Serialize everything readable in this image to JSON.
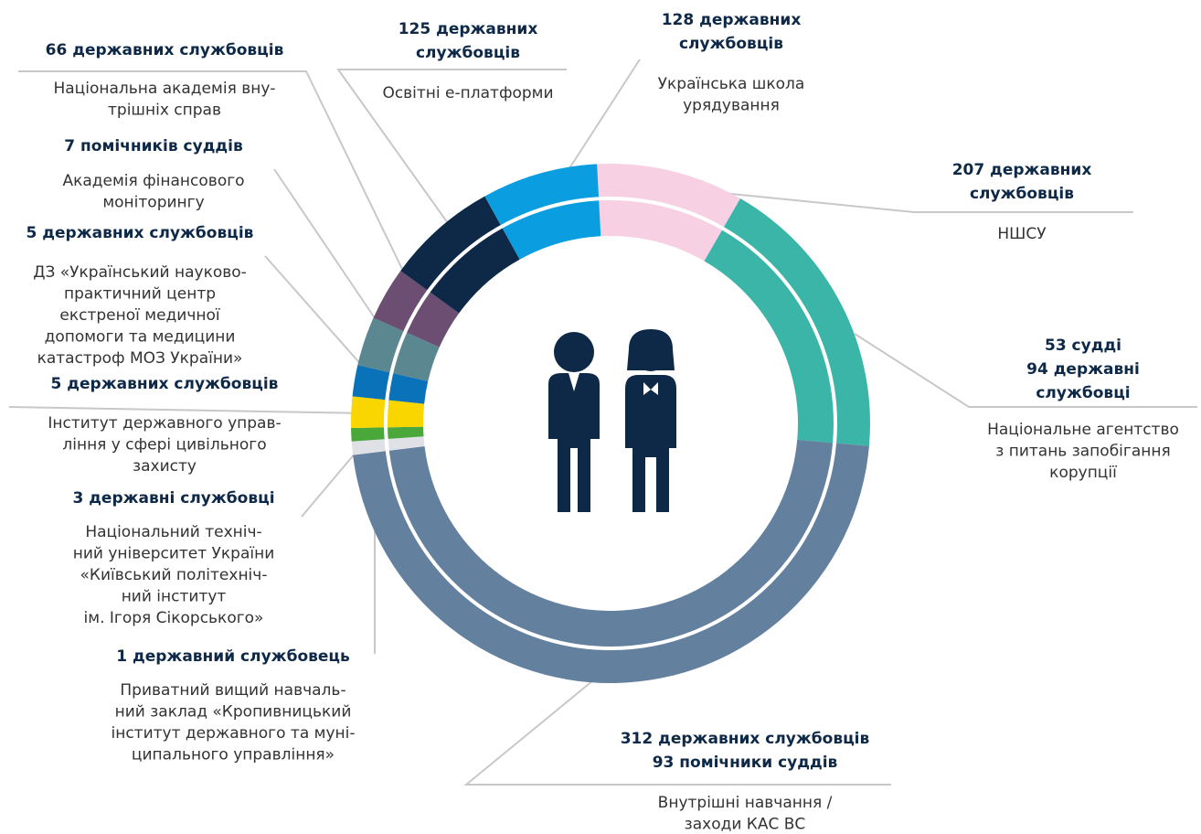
{
  "chart_data": {
    "type": "donut",
    "segments": [
      {
        "count": [
          "207 державних",
          "службовців"
        ],
        "name": [
          "НШСУ"
        ],
        "color": "#f7d0e3"
      },
      {
        "count": [
          "53 судді",
          "94 державні",
          "службовці"
        ],
        "name": [
          "Національне агентство",
          "з питань запобігання",
          "корупції"
        ],
        "color": "#3bb5a8"
      },
      {
        "count": [
          "312 державних службовців",
          "93 помічники суддів"
        ],
        "name": [
          "Внутрішні навчання /",
          "заходи КАС ВС"
        ],
        "color": "#64809f"
      },
      {
        "count": [
          "1 державний службовець"
        ],
        "name": [
          "Приватний вищий навчаль-",
          "ний заклад «Кропивницький",
          "інститут державного та муні-",
          "ципального управління»"
        ],
        "color": "#e0e1e6"
      },
      {
        "count": [
          "3 державні службовці"
        ],
        "name": [
          "Національний техніч-",
          "ний університет України",
          "«Київський політехніч-",
          "ний інститут",
          "ім. Ігоря Сікорського»"
        ],
        "color": "#4aa83a"
      },
      {
        "count": [
          "5 державних службовців"
        ],
        "name": [
          "Інститут державного управ-",
          "ління у сфері цивільного",
          "захисту"
        ],
        "color": "#fad600"
      },
      {
        "count": [
          "5 державних службовців"
        ],
        "name": [
          "ДЗ «Український науково-",
          "практичний центр",
          "екстреної медичної",
          "допомоги та медицини",
          "катастроф МОЗ України»"
        ],
        "color": "#0a72b8"
      },
      {
        "count": [
          "7 помічників суддів"
        ],
        "name": [
          "Академія фінансового",
          "моніторингу"
        ],
        "color": "#5b8791"
      },
      {
        "count": [
          "66 державних службовців"
        ],
        "name": [
          "Національна академія вну-",
          "трішніх справ"
        ],
        "color": "#6b4e72"
      },
      {
        "count": [
          "125 державних",
          "службовців"
        ],
        "name": [
          "Освітні е-платформи"
        ],
        "color": "#0d2947"
      },
      {
        "count": [
          "128 державних",
          "службовців"
        ],
        "name": [
          "Українська школа",
          "урядування"
        ],
        "color": "#0a9de0"
      }
    ]
  }
}
